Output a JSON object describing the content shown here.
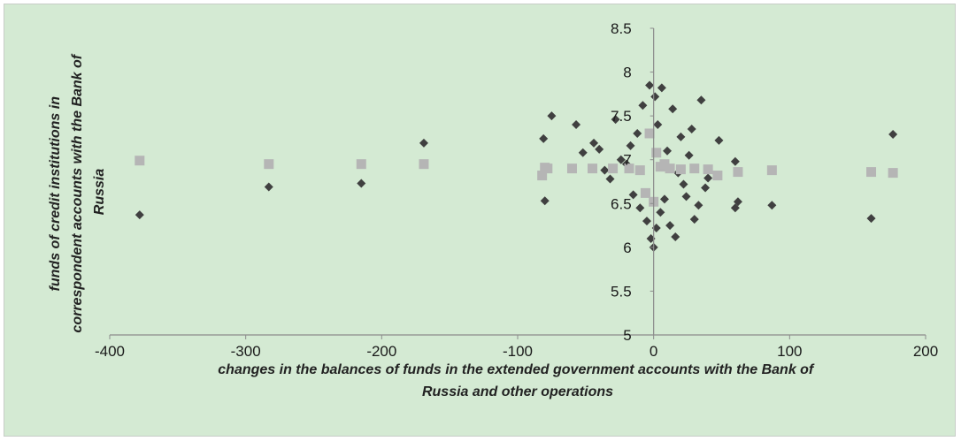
{
  "chart_data": {
    "type": "scatter",
    "title": "",
    "xlabel": "changes in the balances of funds in the extended government accounts with the Bank of Russia and other operations",
    "xlabel_lines": [
      "changes in the balances of funds in the extended government accounts with the Bank of",
      "Russia and other operations"
    ],
    "ylabel": "funds of credit institutions in correspondent accounts with the Bank of Russia",
    "ylabel_lines": [
      "funds  of credit institutions in",
      "correspondent accounts with the Bank of",
      "Russia"
    ],
    "xlim": [
      -400,
      200
    ],
    "ylim": [
      5,
      8.5
    ],
    "x_ticks": [
      "-400",
      "-300",
      "-200",
      "-100",
      "0",
      "100",
      "200"
    ],
    "y_ticks": [
      "5",
      "5.5",
      "6",
      "6.5",
      "7",
      "7.5",
      "8",
      "8.5"
    ],
    "grid": false,
    "legend": "none",
    "background_color": "#d4ead3",
    "series": [
      {
        "color": "#404040",
        "marker": "diamond",
        "points": [
          [
            -378,
            6.37
          ],
          [
            -283,
            6.69
          ],
          [
            -215,
            6.73
          ],
          [
            -169,
            7.19
          ],
          [
            -80,
            6.53
          ],
          [
            -81,
            7.24
          ],
          [
            -75,
            7.5
          ],
          [
            -57,
            7.4
          ],
          [
            -52,
            7.08
          ],
          [
            -44,
            7.19
          ],
          [
            -40,
            7.12
          ],
          [
            -36,
            6.88
          ],
          [
            -32,
            6.78
          ],
          [
            -28,
            7.46
          ],
          [
            -24,
            7.0
          ],
          [
            -20,
            6.95
          ],
          [
            -17,
            7.16
          ],
          [
            -15,
            6.6
          ],
          [
            -12,
            7.3
          ],
          [
            -10,
            6.45
          ],
          [
            -8,
            7.62
          ],
          [
            -5,
            6.3
          ],
          [
            -3,
            7.85
          ],
          [
            -2,
            6.1
          ],
          [
            0,
            6.0
          ],
          [
            1,
            7.72
          ],
          [
            2,
            6.22
          ],
          [
            3,
            7.4
          ],
          [
            5,
            6.4
          ],
          [
            6,
            7.82
          ],
          [
            8,
            6.55
          ],
          [
            10,
            7.1
          ],
          [
            12,
            6.25
          ],
          [
            14,
            7.58
          ],
          [
            16,
            6.12
          ],
          [
            18,
            6.85
          ],
          [
            20,
            7.26
          ],
          [
            22,
            6.72
          ],
          [
            24,
            6.58
          ],
          [
            26,
            7.05
          ],
          [
            28,
            7.35
          ],
          [
            30,
            6.32
          ],
          [
            33,
            6.48
          ],
          [
            35,
            7.68
          ],
          [
            38,
            6.68
          ],
          [
            40,
            6.79
          ],
          [
            48,
            7.22
          ],
          [
            60,
            6.45
          ],
          [
            60,
            6.98
          ],
          [
            62,
            6.52
          ],
          [
            87,
            6.48
          ],
          [
            160,
            6.33
          ],
          [
            176,
            7.29
          ]
        ]
      },
      {
        "color": "#b5b5b5",
        "marker": "square",
        "points": [
          [
            -378,
            6.99
          ],
          [
            -283,
            6.95
          ],
          [
            -215,
            6.95
          ],
          [
            -169,
            6.95
          ],
          [
            -82,
            6.82
          ],
          [
            -80,
            6.91
          ],
          [
            -78,
            6.9
          ],
          [
            -60,
            6.9
          ],
          [
            -45,
            6.9
          ],
          [
            -30,
            6.9
          ],
          [
            -18,
            6.9
          ],
          [
            -10,
            6.88
          ],
          [
            -6,
            6.62
          ],
          [
            -3,
            7.3
          ],
          [
            0,
            6.52
          ],
          [
            2,
            7.08
          ],
          [
            5,
            6.92
          ],
          [
            8,
            6.95
          ],
          [
            12,
            6.9
          ],
          [
            20,
            6.89
          ],
          [
            30,
            6.9
          ],
          [
            40,
            6.89
          ],
          [
            47,
            6.82
          ],
          [
            62,
            6.86
          ],
          [
            87,
            6.88
          ],
          [
            160,
            6.86
          ],
          [
            176,
            6.85
          ]
        ]
      }
    ]
  }
}
